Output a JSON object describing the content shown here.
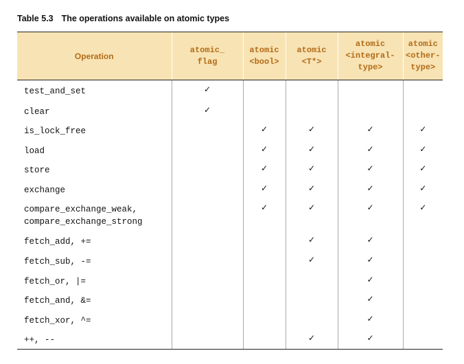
{
  "caption": {
    "number": "Table 5.3",
    "title": "The operations available on atomic types"
  },
  "columns": [
    {
      "key": "operation",
      "lines": [
        "Operation"
      ]
    },
    {
      "key": "flag",
      "lines": [
        "atomic_",
        "flag"
      ]
    },
    {
      "key": "bool",
      "lines": [
        "atomic",
        "<bool>"
      ]
    },
    {
      "key": "ptr",
      "lines": [
        "atomic",
        "<T*>"
      ]
    },
    {
      "key": "integral",
      "lines": [
        "atomic",
        "<integral-",
        "type>"
      ]
    },
    {
      "key": "other",
      "lines": [
        "atomic",
        "<other-",
        "type>"
      ]
    }
  ],
  "check_glyph": "✓",
  "rows": [
    {
      "lines": [
        "test_and_set"
      ],
      "height_hint": "single",
      "checks": [
        true,
        false,
        false,
        false,
        false
      ]
    },
    {
      "lines": [
        "clear"
      ],
      "height_hint": "single",
      "checks": [
        true,
        false,
        false,
        false,
        false
      ]
    },
    {
      "lines": [
        "is_lock_free"
      ],
      "height_hint": "single",
      "checks": [
        false,
        true,
        true,
        true,
        true
      ]
    },
    {
      "lines": [
        "load"
      ],
      "height_hint": "single",
      "checks": [
        false,
        true,
        true,
        true,
        true
      ]
    },
    {
      "lines": [
        "store"
      ],
      "height_hint": "single",
      "checks": [
        false,
        true,
        true,
        true,
        true
      ]
    },
    {
      "lines": [
        "exchange"
      ],
      "height_hint": "single",
      "checks": [
        false,
        true,
        true,
        true,
        true
      ]
    },
    {
      "lines": [
        "compare_exchange_weak,",
        "compare_exchange_strong"
      ],
      "height_hint": "double",
      "checks": [
        false,
        true,
        true,
        true,
        true
      ]
    },
    {
      "lines": [
        "fetch_add, +="
      ],
      "height_hint": "single",
      "checks": [
        false,
        false,
        true,
        true,
        false
      ]
    },
    {
      "lines": [
        "fetch_sub, -="
      ],
      "height_hint": "single",
      "checks": [
        false,
        false,
        true,
        true,
        false
      ]
    },
    {
      "lines": [
        "fetch_or, |="
      ],
      "height_hint": "single",
      "checks": [
        false,
        false,
        false,
        true,
        false
      ]
    },
    {
      "lines": [
        "fetch_and, &="
      ],
      "height_hint": "single",
      "checks": [
        false,
        false,
        false,
        true,
        false
      ]
    },
    {
      "lines": [
        "fetch_xor, ^="
      ],
      "height_hint": "single",
      "checks": [
        false,
        false,
        false,
        true,
        false
      ]
    },
    {
      "lines": [
        "++, --"
      ],
      "height_hint": "single",
      "checks": [
        false,
        false,
        true,
        true,
        false
      ]
    }
  ]
}
